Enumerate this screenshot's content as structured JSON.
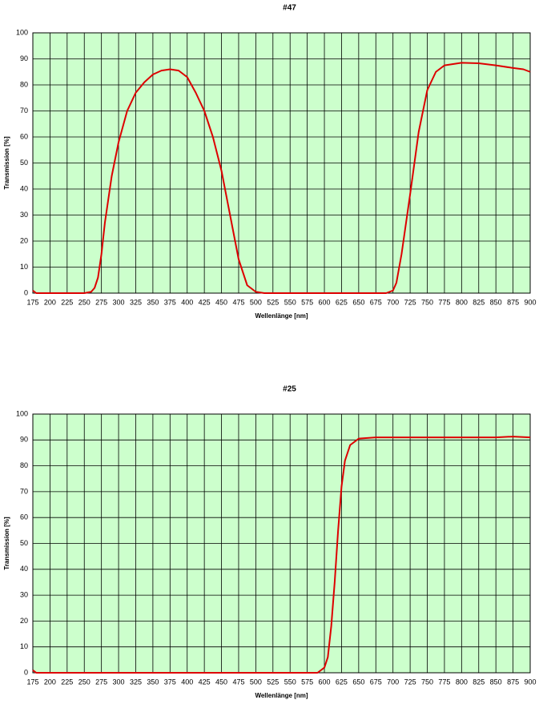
{
  "chart_data": [
    {
      "type": "line",
      "title": "#47",
      "xlabel": "Wellenlänge [nm]",
      "ylabel": "Transmission [%]",
      "x": [
        175,
        180,
        200,
        250,
        260,
        265,
        270,
        275,
        280,
        290,
        300,
        312.5,
        325,
        337.5,
        350,
        362.5,
        375,
        387.5,
        400,
        412.5,
        425,
        437.5,
        450,
        462.5,
        475,
        487.5,
        500,
        512.5,
        550,
        650,
        690,
        700,
        705,
        712.5,
        725,
        737.5,
        750,
        762.5,
        775,
        800,
        825,
        850,
        875,
        890,
        900
      ],
      "series": [
        {
          "color": "#dd0000",
          "values": [
            1,
            0,
            0,
            0,
            0.5,
            2,
            6,
            15,
            27,
            45,
            58,
            70,
            77,
            81,
            84,
            85.5,
            86,
            85.5,
            83,
            77,
            70,
            60,
            47,
            30,
            13,
            3,
            0.5,
            0,
            0,
            0,
            0,
            1,
            4,
            15,
            38,
            62,
            78,
            85,
            87.5,
            88.5,
            88.3,
            87.5,
            86.5,
            86,
            85
          ]
        }
      ],
      "xlim": [
        175,
        900
      ],
      "ylim": [
        0,
        100
      ],
      "xticks": [
        175,
        200,
        225,
        250,
        275,
        300,
        325,
        350,
        375,
        400,
        425,
        450,
        475,
        500,
        525,
        550,
        575,
        600,
        625,
        650,
        675,
        700,
        725,
        750,
        775,
        800,
        825,
        850,
        875,
        900
      ],
      "yticks": [
        0,
        10,
        20,
        30,
        40,
        50,
        60,
        70,
        80,
        90,
        100
      ],
      "grid": true
    },
    {
      "type": "line",
      "title": "#25",
      "xlabel": "Wellenlänge [nm]",
      "ylabel": "Transmission [%]",
      "x": [
        175,
        180,
        500,
        590,
        600,
        605,
        610,
        615,
        620,
        625,
        630,
        637.5,
        650,
        675,
        700,
        800,
        850,
        875,
        900
      ],
      "series": [
        {
          "color": "#dd0000",
          "values": [
            1,
            0,
            0,
            0,
            2,
            6,
            18,
            35,
            55,
            72,
            82,
            88,
            90.5,
            91,
            91,
            91,
            91,
            91.3,
            91
          ]
        }
      ],
      "xlim": [
        175,
        900
      ],
      "ylim": [
        0,
        100
      ],
      "xticks": [
        175,
        200,
        225,
        250,
        275,
        300,
        325,
        350,
        375,
        400,
        425,
        450,
        475,
        500,
        525,
        550,
        575,
        600,
        625,
        650,
        675,
        700,
        725,
        750,
        775,
        800,
        825,
        850,
        875,
        900
      ],
      "yticks": [
        0,
        10,
        20,
        30,
        40,
        50,
        60,
        70,
        80,
        90,
        100
      ],
      "grid": true
    }
  ]
}
